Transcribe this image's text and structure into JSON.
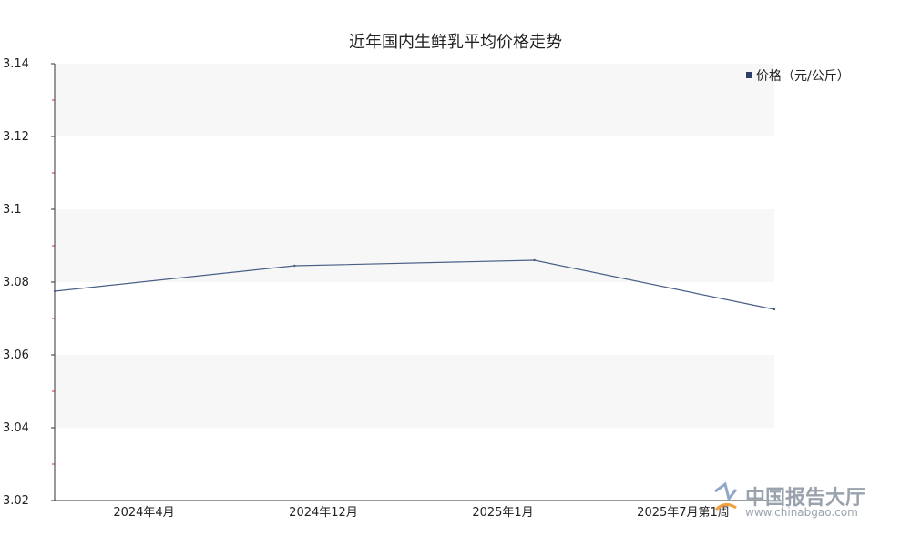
{
  "chart_data": {
    "type": "line",
    "title": "近年国内生鲜乳平均价格走势",
    "categories": [
      "2024年4月",
      "2024年12月",
      "2025年1月",
      "2025年7月第1周"
    ],
    "series": [
      {
        "name": "价格（元/公斤）",
        "values": [
          3.0775,
          3.0845,
          3.086,
          3.0725
        ],
        "color": "#4a5f86"
      }
    ],
    "ylim": [
      3.02,
      3.14
    ],
    "yticks": [
      "3.02",
      "3.04",
      "3.06",
      "3.08",
      "3.1",
      "3.12",
      "3.14"
    ],
    "grid": "alternating horizontal bands",
    "legend_position": "top-right"
  },
  "watermark": {
    "name": "中国报告大厅",
    "url": "www.chinabgao.com"
  },
  "colors": {
    "band": "#f7f7f7",
    "axis": "#333333",
    "tick_mark": "#cc3333",
    "legend_marker": "#2f3f66"
  }
}
